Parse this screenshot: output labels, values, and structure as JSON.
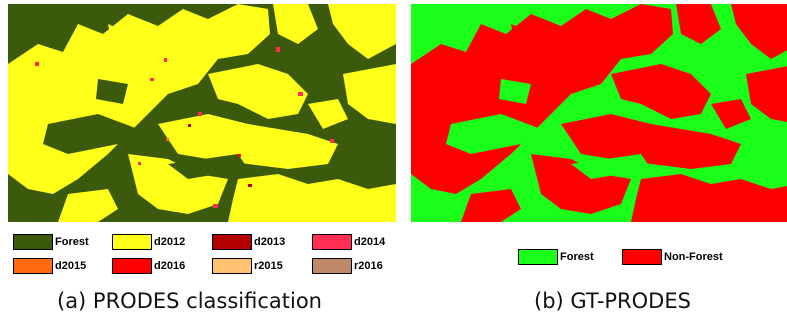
{
  "panel_a": {
    "caption": "(a) PRODES classification",
    "legend": [
      {
        "label": "Forest",
        "color": "#3b5a0c"
      },
      {
        "label": "d2012",
        "color": "#ffff1a"
      },
      {
        "label": "d2013",
        "color": "#b30000"
      },
      {
        "label": "d2014",
        "color": "#ff2e52"
      },
      {
        "label": "d2015",
        "color": "#ff6a10"
      },
      {
        "label": "d2016",
        "color": "#ff0000"
      },
      {
        "label": "r2015",
        "color": "#ffc273"
      },
      {
        "label": "r2016",
        "color": "#c08a6a"
      }
    ]
  },
  "panel_b": {
    "caption": "(b) GT-PRODES",
    "legend": [
      {
        "label": "Forest",
        "color": "#1aff1a"
      },
      {
        "label": "Non-Forest",
        "color": "#ff0000"
      }
    ]
  }
}
